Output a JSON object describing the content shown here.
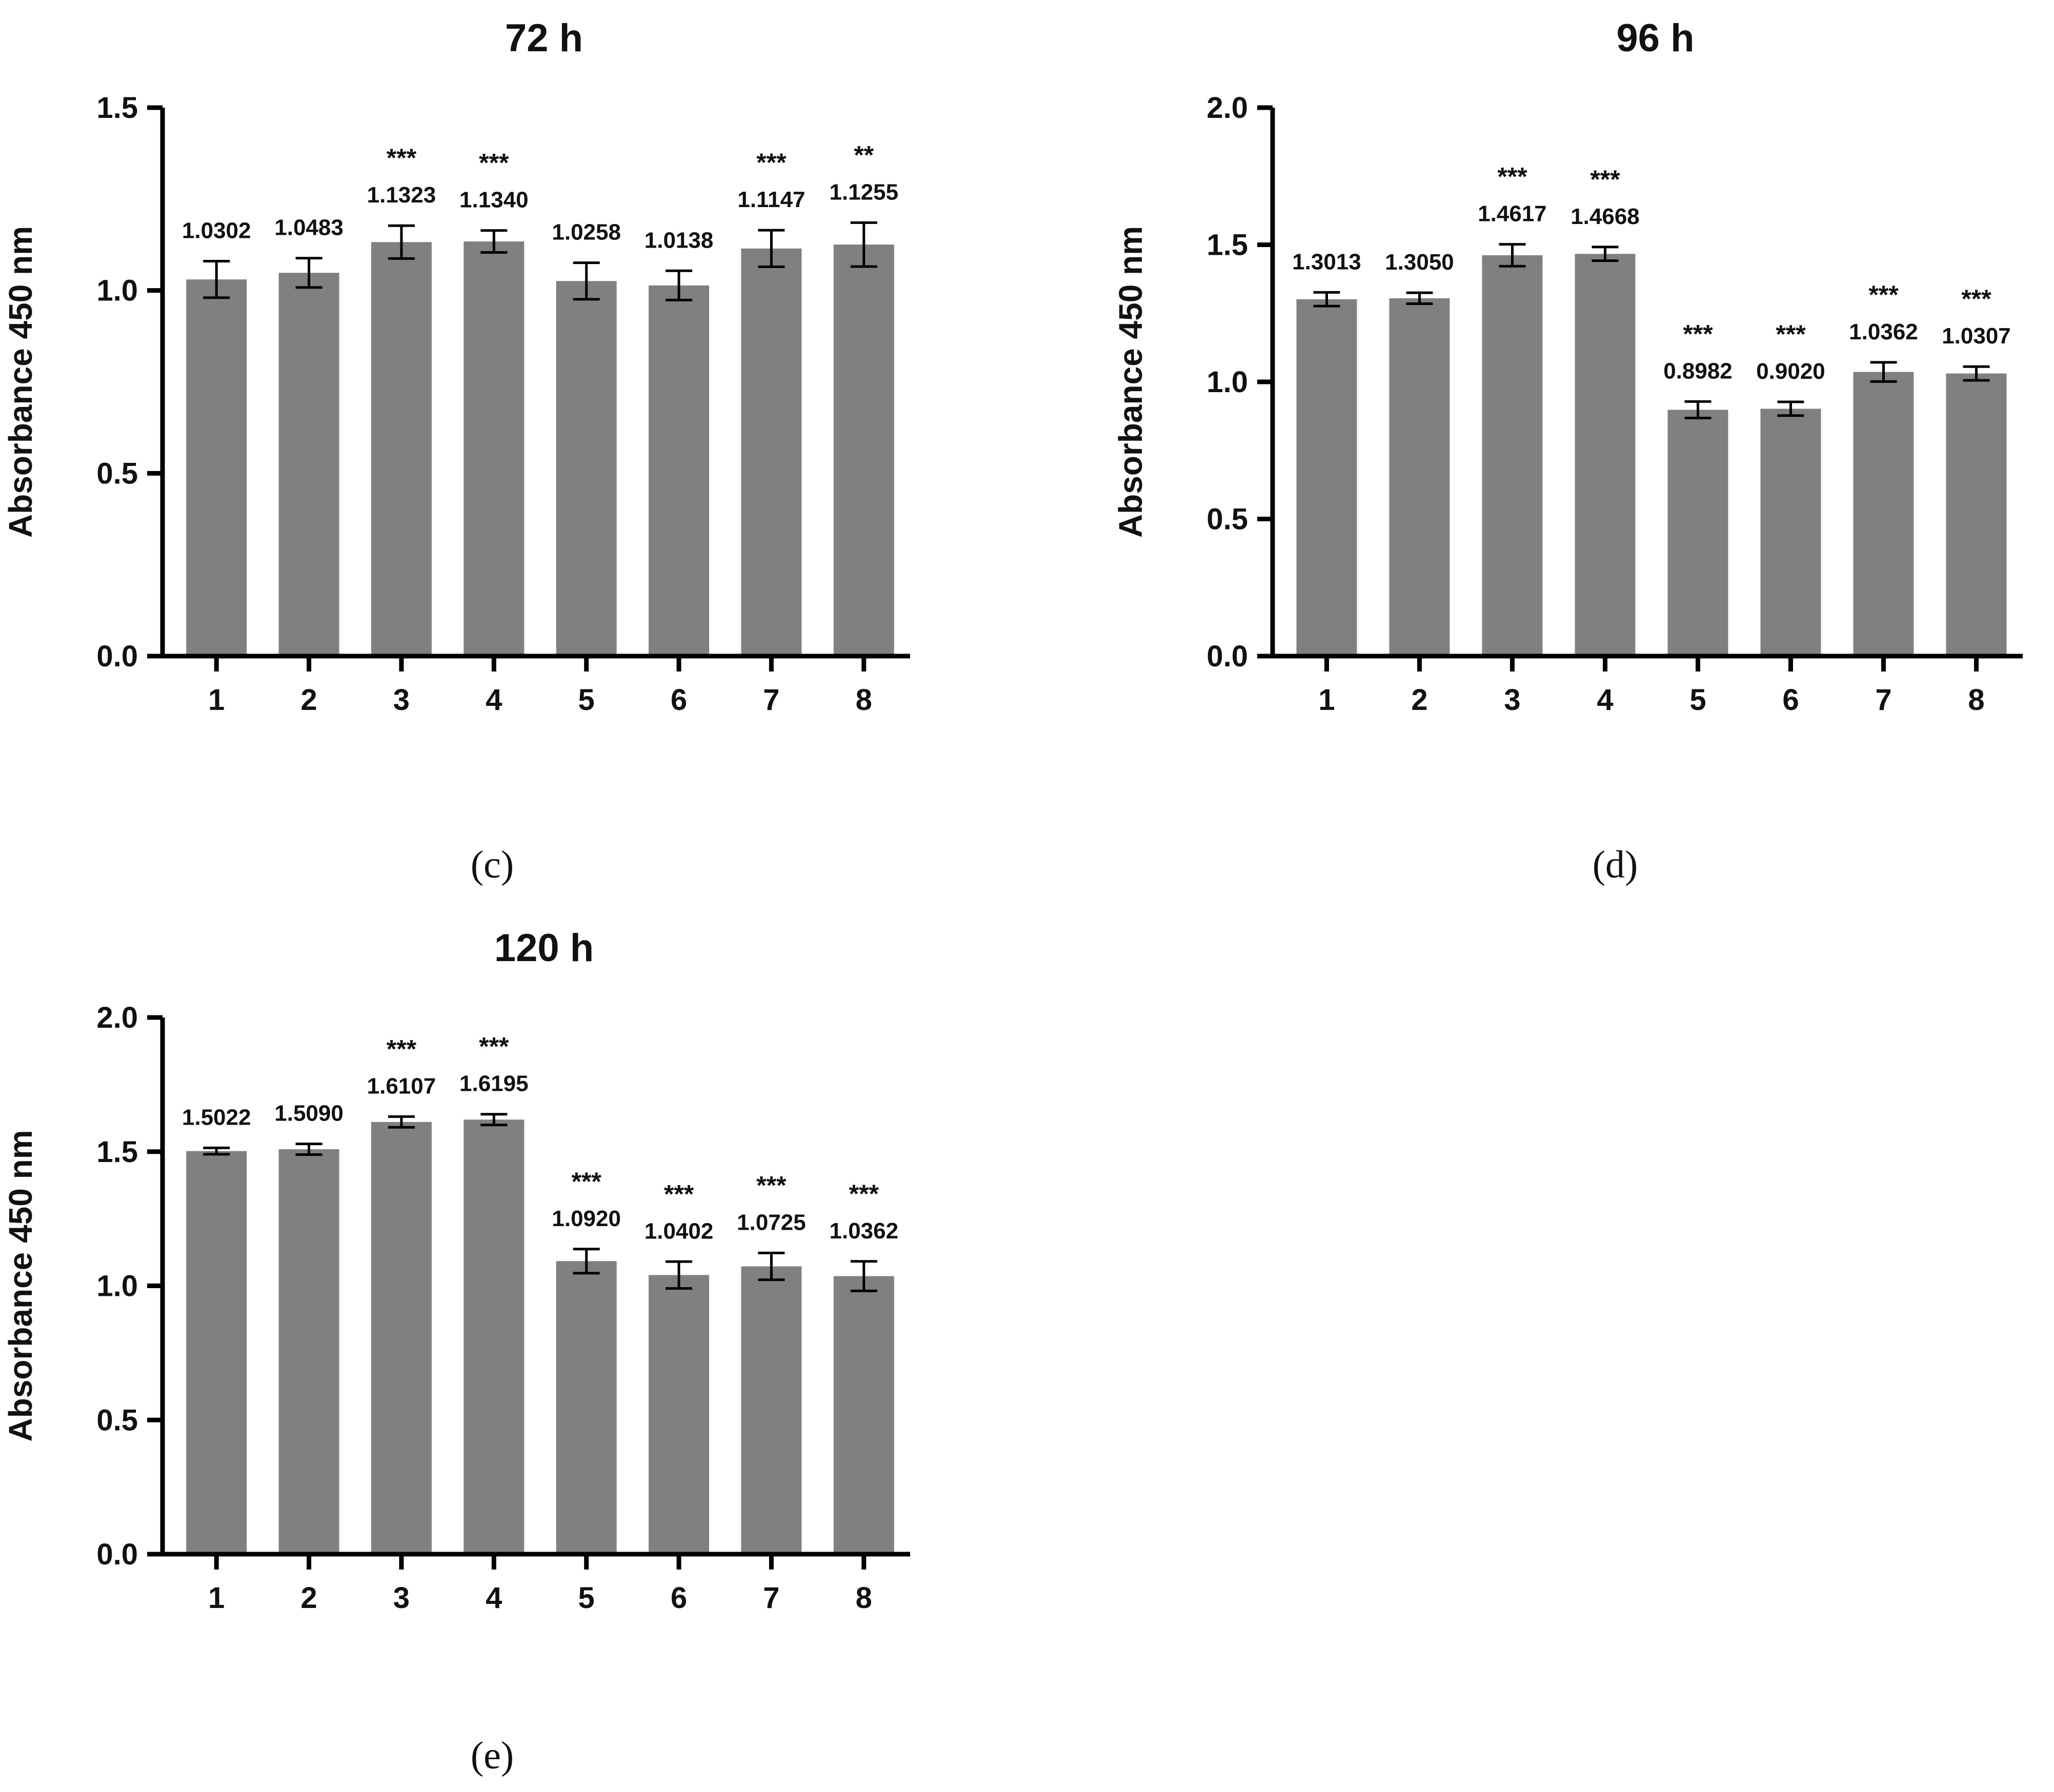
{
  "chart_data": [
    {
      "panel": "c",
      "type": "bar",
      "title": "72 h",
      "xlabel": "",
      "ylabel": "Absorbance 450 nm",
      "ylim": [
        0,
        1.5
      ],
      "yticks": [
        "0.0",
        "0.5",
        "1.0",
        "1.5"
      ],
      "categories": [
        "1",
        "2",
        "3",
        "4",
        "5",
        "6",
        "7",
        "8"
      ],
      "values": [
        1.0302,
        1.0483,
        1.1323,
        1.134,
        1.0258,
        1.0138,
        1.1147,
        1.1255
      ],
      "value_labels": [
        "1.0302",
        "1.0483",
        "1.1323",
        "1.1340",
        "1.0258",
        "1.0138",
        "1.1147",
        "1.1255"
      ],
      "errors": [
        0.05,
        0.04,
        0.045,
        0.03,
        0.05,
        0.04,
        0.05,
        0.06
      ],
      "significance": [
        "",
        "",
        "***",
        "***",
        "",
        "",
        "***",
        "**"
      ],
      "bar_color": "#808080"
    },
    {
      "panel": "d",
      "type": "bar",
      "title": "96 h",
      "xlabel": "",
      "ylabel": "Absorbance 450 nm",
      "ylim": [
        0,
        2.0
      ],
      "yticks": [
        "0.0",
        "0.5",
        "1.0",
        "1.5",
        "2.0"
      ],
      "categories": [
        "1",
        "2",
        "3",
        "4",
        "5",
        "6",
        "7",
        "8"
      ],
      "values": [
        1.3013,
        1.305,
        1.4617,
        1.4668,
        0.8982,
        0.902,
        1.0362,
        1.0307
      ],
      "value_labels": [
        "1.3013",
        "1.3050",
        "1.4617",
        "1.4668",
        "0.8982",
        "0.9020",
        "1.0362",
        "1.0307"
      ],
      "errors": [
        0.025,
        0.02,
        0.04,
        0.025,
        0.03,
        0.025,
        0.035,
        0.025
      ],
      "significance": [
        "",
        "",
        "***",
        "***",
        "***",
        "***",
        "***",
        "***"
      ],
      "bar_color": "#808080"
    },
    {
      "panel": "e",
      "type": "bar",
      "title": "120 h",
      "xlabel": "",
      "ylabel": "Absorbance 450 nm",
      "ylim": [
        0,
        2.0
      ],
      "yticks": [
        "0.0",
        "0.5",
        "1.0",
        "1.5",
        "2.0"
      ],
      "categories": [
        "1",
        "2",
        "3",
        "4",
        "5",
        "6",
        "7",
        "8"
      ],
      "values": [
        1.5022,
        1.509,
        1.6107,
        1.6195,
        1.092,
        1.0402,
        1.0725,
        1.0362
      ],
      "value_labels": [
        "1.5022",
        "1.5090",
        "1.6107",
        "1.6195",
        "1.0920",
        "1.0402",
        "1.0725",
        "1.0362"
      ],
      "errors": [
        0.012,
        0.02,
        0.02,
        0.02,
        0.045,
        0.05,
        0.05,
        0.055
      ],
      "significance": [
        "",
        "",
        "***",
        "***",
        "***",
        "***",
        "***",
        "***"
      ],
      "bar_color": "#808080"
    }
  ],
  "panel_labels": [
    "(c)",
    "(d)",
    "(e)"
  ]
}
